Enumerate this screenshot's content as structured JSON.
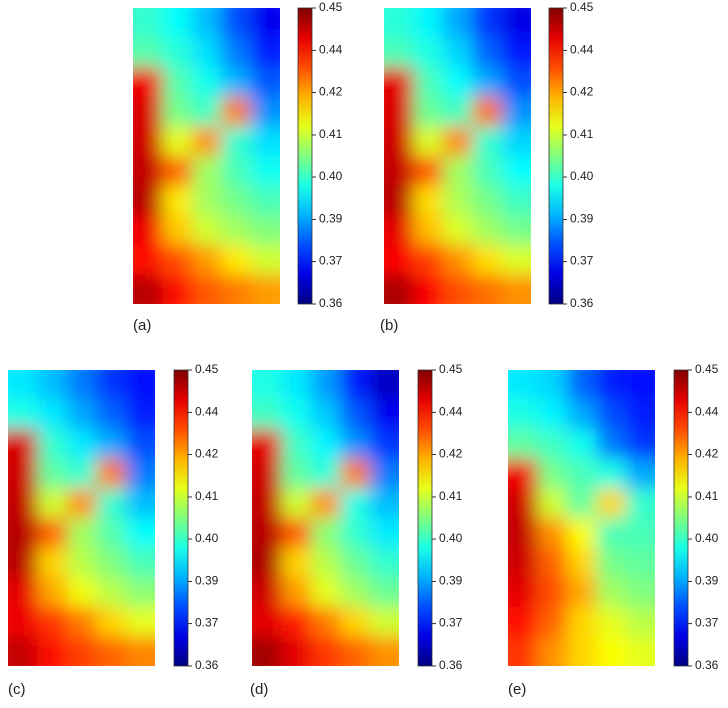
{
  "chart_data": [
    {
      "type": "heatmap",
      "title": "(a)",
      "zlim": [
        0.36,
        0.45
      ],
      "zticks": [
        0.36,
        {
          "value": 0.3729,
          "label": "0.37"
        },
        {
          "value": 0.3857,
          "label": "0.39"
        },
        {
          "value": 0.3986,
          "label": "0.40"
        },
        {
          "value": 0.4114,
          "label": "0.41"
        },
        {
          "value": 0.4243,
          "label": "0.42"
        },
        {
          "value": 0.4371,
          "label": "0.44"
        },
        0.45
      ],
      "z": [
        [
          0.398,
          0.394,
          0.388,
          0.378,
          0.37
        ],
        [
          0.401,
          0.397,
          0.391,
          0.382,
          0.374
        ],
        [
          0.44,
          0.401,
          0.395,
          0.387,
          0.379
        ],
        [
          0.442,
          0.404,
          0.399,
          0.428,
          0.384
        ],
        [
          0.443,
          0.414,
          0.426,
          0.398,
          0.391
        ],
        [
          0.444,
          0.43,
          0.408,
          0.4,
          0.395
        ],
        [
          0.445,
          0.418,
          0.408,
          0.404,
          0.4
        ],
        [
          0.44,
          0.421,
          0.412,
          0.408,
          0.405
        ],
        [
          0.438,
          0.432,
          0.425,
          0.418,
          0.412
        ],
        [
          0.445,
          0.438,
          0.431,
          0.428,
          0.425
        ]
      ]
    },
    {
      "type": "heatmap",
      "title": "(b)",
      "zlim": [
        0.36,
        0.45
      ],
      "zticks": [
        0.36,
        {
          "value": 0.3729,
          "label": "0.37"
        },
        {
          "value": 0.3857,
          "label": "0.39"
        },
        {
          "value": 0.3986,
          "label": "0.40"
        },
        {
          "value": 0.4114,
          "label": "0.41"
        },
        {
          "value": 0.4243,
          "label": "0.42"
        },
        {
          "value": 0.4371,
          "label": "0.44"
        },
        0.45
      ],
      "z": [
        [
          0.397,
          0.393,
          0.386,
          0.376,
          0.369
        ],
        [
          0.4,
          0.396,
          0.39,
          0.38,
          0.373
        ],
        [
          0.441,
          0.4,
          0.394,
          0.386,
          0.378
        ],
        [
          0.442,
          0.403,
          0.399,
          0.429,
          0.384
        ],
        [
          0.443,
          0.413,
          0.427,
          0.398,
          0.39
        ],
        [
          0.444,
          0.431,
          0.408,
          0.4,
          0.394
        ],
        [
          0.445,
          0.419,
          0.409,
          0.404,
          0.399
        ],
        [
          0.441,
          0.422,
          0.413,
          0.408,
          0.404
        ],
        [
          0.439,
          0.433,
          0.426,
          0.419,
          0.413
        ],
        [
          0.446,
          0.439,
          0.432,
          0.429,
          0.426
        ]
      ]
    },
    {
      "type": "heatmap",
      "title": "(c)",
      "zlim": [
        0.36,
        0.45
      ],
      "zticks": [
        0.36,
        {
          "value": 0.3729,
          "label": "0.37"
        },
        {
          "value": 0.3857,
          "label": "0.39"
        },
        {
          "value": 0.3986,
          "label": "0.40"
        },
        {
          "value": 0.4114,
          "label": "0.41"
        },
        {
          "value": 0.4243,
          "label": "0.42"
        },
        {
          "value": 0.4371,
          "label": "0.44"
        },
        0.45
      ],
      "z": [
        [
          0.392,
          0.388,
          0.382,
          0.376,
          0.372
        ],
        [
          0.396,
          0.392,
          0.386,
          0.38,
          0.374
        ],
        [
          0.442,
          0.398,
          0.392,
          0.386,
          0.378
        ],
        [
          0.443,
          0.402,
          0.398,
          0.428,
          0.382
        ],
        [
          0.444,
          0.412,
          0.426,
          0.398,
          0.388
        ],
        [
          0.445,
          0.43,
          0.408,
          0.401,
          0.394
        ],
        [
          0.445,
          0.42,
          0.41,
          0.405,
          0.4
        ],
        [
          0.441,
          0.424,
          0.415,
          0.41,
          0.406
        ],
        [
          0.44,
          0.434,
          0.428,
          0.42,
          0.414
        ],
        [
          0.444,
          0.438,
          0.433,
          0.43,
          0.427
        ]
      ]
    },
    {
      "type": "heatmap",
      "title": "(d)",
      "zlim": [
        0.36,
        0.45
      ],
      "zticks": [
        0.36,
        {
          "value": 0.3729,
          "label": "0.37"
        },
        {
          "value": 0.3857,
          "label": "0.39"
        },
        {
          "value": 0.3986,
          "label": "0.40"
        },
        {
          "value": 0.4114,
          "label": "0.41"
        },
        {
          "value": 0.4243,
          "label": "0.42"
        },
        {
          "value": 0.4371,
          "label": "0.44"
        },
        0.45
      ],
      "z": [
        [
          0.396,
          0.392,
          0.385,
          0.374,
          0.366
        ],
        [
          0.399,
          0.395,
          0.389,
          0.379,
          0.37
        ],
        [
          0.441,
          0.399,
          0.393,
          0.384,
          0.376
        ],
        [
          0.443,
          0.402,
          0.397,
          0.428,
          0.382
        ],
        [
          0.444,
          0.412,
          0.426,
          0.396,
          0.388
        ],
        [
          0.445,
          0.431,
          0.406,
          0.398,
          0.392
        ],
        [
          0.446,
          0.42,
          0.41,
          0.403,
          0.398
        ],
        [
          0.443,
          0.425,
          0.414,
          0.408,
          0.403
        ],
        [
          0.441,
          0.436,
          0.428,
          0.42,
          0.412
        ],
        [
          0.447,
          0.441,
          0.434,
          0.43,
          0.426
        ]
      ]
    },
    {
      "type": "heatmap",
      "title": "(e)",
      "zlim": [
        0.36,
        0.45
      ],
      "zticks": [
        0.36,
        {
          "value": 0.3729,
          "label": "0.37"
        },
        {
          "value": 0.3857,
          "label": "0.39"
        },
        {
          "value": 0.3986,
          "label": "0.40"
        },
        {
          "value": 0.4114,
          "label": "0.41"
        },
        {
          "value": 0.4243,
          "label": "0.42"
        },
        {
          "value": 0.4371,
          "label": "0.44"
        },
        0.45
      ],
      "z": [
        [
          0.392,
          0.39,
          0.38,
          0.374,
          0.372
        ],
        [
          0.396,
          0.393,
          0.386,
          0.378,
          0.374
        ],
        [
          0.402,
          0.399,
          0.395,
          0.382,
          0.376
        ],
        [
          0.44,
          0.404,
          0.4,
          0.396,
          0.386
        ],
        [
          0.443,
          0.412,
          0.402,
          0.42,
          0.398
        ],
        [
          0.444,
          0.426,
          0.416,
          0.4,
          0.4
        ],
        [
          0.443,
          0.43,
          0.42,
          0.404,
          0.402
        ],
        [
          0.441,
          0.432,
          0.424,
          0.408,
          0.405
        ],
        [
          0.438,
          0.43,
          0.42,
          0.414,
          0.41
        ],
        [
          0.434,
          0.426,
          0.42,
          0.416,
          0.414
        ]
      ]
    }
  ]
}
